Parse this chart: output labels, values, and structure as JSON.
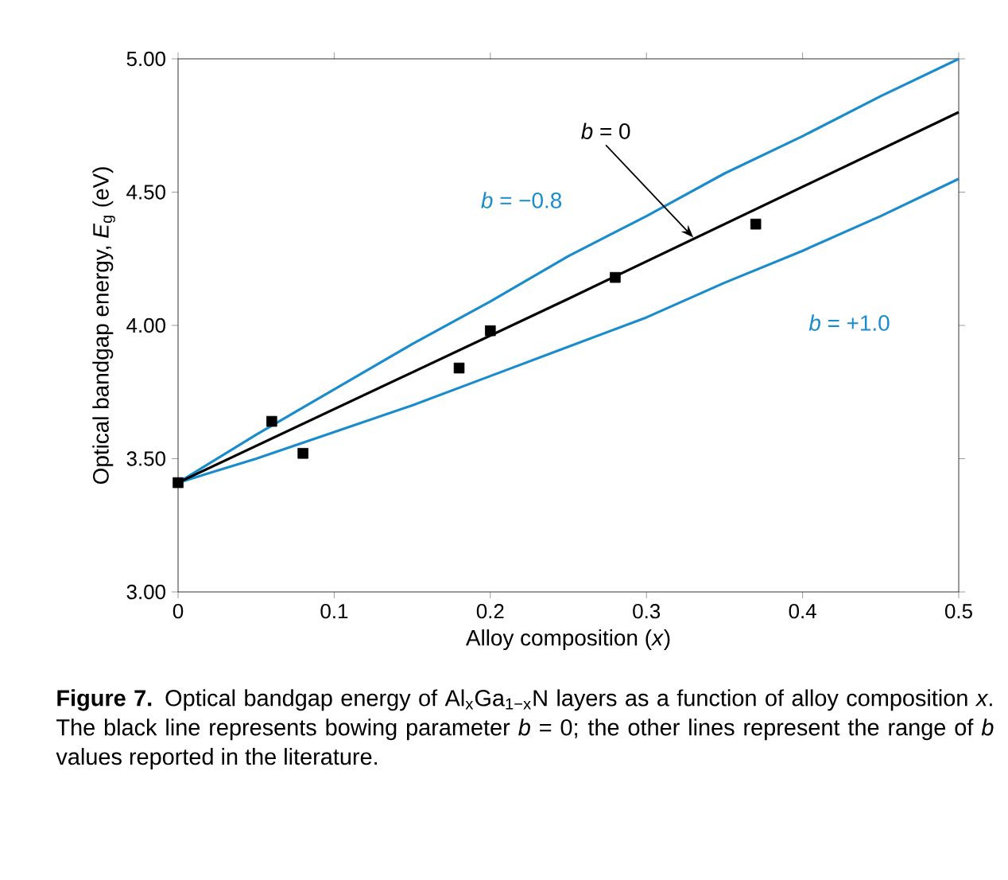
{
  "chart_data": {
    "type": "line",
    "xlabel": "Alloy composition (*x*)",
    "ylabel": "Optical bandgap energy, *E*$_{g}$ (eV)",
    "xlim": [
      0,
      0.5
    ],
    "ylim": [
      3,
      5
    ],
    "xticks": [
      0,
      0.1,
      0.2,
      0.3,
      0.4,
      0.5
    ],
    "yticks": [
      {
        "value": 3,
        "label": "3.00"
      },
      {
        "value": 3.5,
        "label": "3.50"
      },
      {
        "value": 4,
        "label": "4.00"
      },
      {
        "value": 4.5,
        "label": "4.50"
      },
      {
        "value": 5,
        "label": "5.00"
      }
    ],
    "grid": false,
    "series": [
      {
        "color": "#1a8ccc",
        "x": [
          0,
          0.05,
          0.1,
          0.15,
          0.2,
          0.25,
          0.3,
          0.35,
          0.4,
          0.45,
          0.5
        ],
        "values": [
          3.41,
          3.59,
          3.76,
          3.93,
          4.09,
          4.26,
          4.41,
          4.57,
          4.71,
          4.86,
          5.0
        ]
      },
      {
        "color": "#1a8ccc",
        "x": [
          0,
          0.05,
          0.1,
          0.15,
          0.2,
          0.25,
          0.3,
          0.35,
          0.4,
          0.45,
          0.5
        ],
        "values": [
          3.41,
          3.5,
          3.6,
          3.7,
          3.81,
          3.92,
          4.03,
          4.16,
          4.28,
          4.41,
          4.55
        ]
      },
      {
        "color": "#000000",
        "x": [
          0,
          0.25,
          0.5
        ],
        "values": [
          3.41,
          4.1,
          4.8
        ]
      },
      {
        "type": "scatter",
        "marker": "square",
        "color": "#000000",
        "x": [
          0,
          0.06,
          0.08,
          0.18,
          0.2,
          0.28,
          0.37
        ],
        "values": [
          3.41,
          3.64,
          3.52,
          3.84,
          3.98,
          4.18,
          4.38
        ]
      }
    ],
    "annotations": [
      {
        "text": "*b* = 0",
        "x": 0.33,
        "y": 4.33
      },
      "*b* = −0.8",
      "*b* = +1.0",
      "**Figure 7.** Optical bandgap energy of Al$_{x}$Ga$_{1−x}$N layers as a function of alloy composition *x*. The black line represents bowing parameter *b* = 0; the other lines represent the range of *b* values reported in the literature."
    ]
  }
}
